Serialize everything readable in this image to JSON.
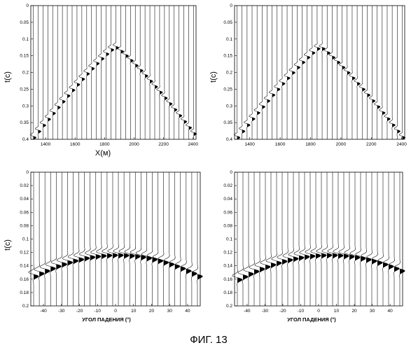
{
  "figure": {
    "caption": "ФИГ. 13"
  },
  "panels": [
    {
      "id": "top-left",
      "ylabel": "t(c)",
      "xlabel": "X(м)",
      "yticks": [
        "0",
        "0.05",
        "0.1",
        "0.15",
        "0.2",
        "0.25",
        "0.3",
        "0.35",
        "0.4"
      ],
      "xticks": [
        "1400",
        "1600",
        "1800",
        "2000",
        "2200",
        "2400"
      ],
      "ylim": [
        0,
        0.4
      ],
      "xlim": [
        1300,
        2420
      ],
      "event": {
        "kind": "hyperbola",
        "apex_x": 1870,
        "apex_t": 0.12,
        "edge_t": 0.4,
        "style": "thin"
      }
    },
    {
      "id": "top-right",
      "ylabel": "t(c)",
      "xlabel": "",
      "yticks": [
        "0",
        "0.05",
        "0.1",
        "0.15",
        "0.2",
        "0.25",
        "0.3",
        "0.35",
        "0.4"
      ],
      "xticks": [
        "1400",
        "1600",
        "1800",
        "2000",
        "2200",
        "2400"
      ],
      "ylim": [
        0,
        0.4
      ],
      "xlim": [
        1300,
        2420
      ],
      "event": {
        "kind": "hyperbola",
        "apex_x": 1860,
        "apex_t": 0.12,
        "edge_t": 0.4,
        "style": "thin"
      }
    },
    {
      "id": "bottom-left",
      "ylabel": "t(c)",
      "xlabel": "УГОЛ ПАДЕНИЯ (°)",
      "yticks": [
        "0",
        "0.02",
        "0.04",
        "0.06",
        "0.08",
        "0.1",
        "0.12",
        "0.14",
        "0.16",
        "0.18",
        "0.2"
      ],
      "xticks": [
        "-40",
        "-30",
        "-20",
        "-10",
        "0",
        "10",
        "20",
        "30",
        "40"
      ],
      "ylim": [
        0,
        0.2
      ],
      "xlim": [
        -47,
        47
      ],
      "event": {
        "kind": "arc",
        "apex_x": 0,
        "apex_t": 0.121,
        "edge_t": 0.155,
        "style": "thick"
      }
    },
    {
      "id": "bottom-right",
      "ylabel": "",
      "xlabel": "УГОЛ ПАДЕНИЯ (°)",
      "yticks": [
        "0",
        "0.02",
        "0.04",
        "0.06",
        "0.08",
        "0.1",
        "0.12",
        "0.14",
        "0.16",
        "0.18",
        "0.2"
      ],
      "xticks": [
        "-40",
        "-30",
        "-20",
        "-10",
        "0",
        "10",
        "20",
        "30",
        "40"
      ],
      "ylim": [
        0,
        0.2
      ],
      "xlim": [
        -47,
        47
      ],
      "event": {
        "kind": "arc",
        "apex_x": 5,
        "apex_t": 0.121,
        "edge_t": 0.16,
        "style": "thick"
      }
    }
  ]
}
